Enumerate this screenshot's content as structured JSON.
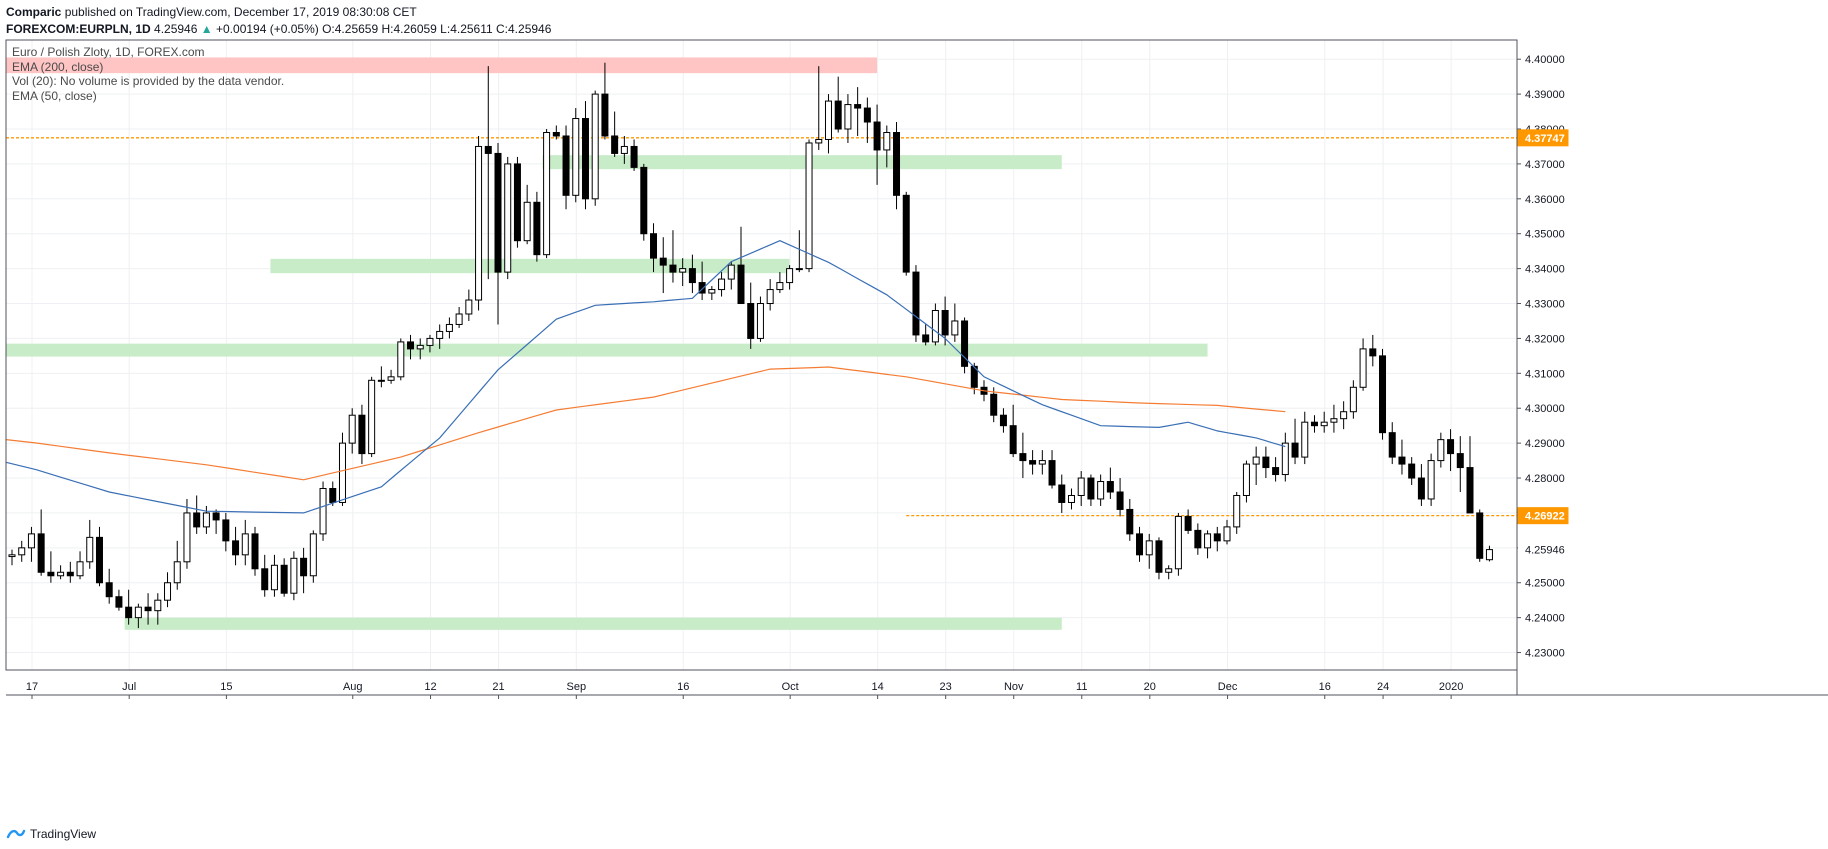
{
  "header": {
    "author": "Comparic",
    "published_text": "published on TradingView.com, December 17, 2019 08:30:08 CET",
    "symbol": "FOREXCOM:EURPLN, 1D",
    "last": "4.25946",
    "change_arrow": "▲",
    "change": "+0.00194 (+0.05%)",
    "ohlc": "O:4.25659 H:4.26059 L:4.25611 C:4.25946"
  },
  "legend": {
    "title": "Euro / Polish Zloty, 1D, FOREX.com",
    "ema200": "EMA (200, close)",
    "vol": "Vol (20): No volume is provided by the data vendor.",
    "ema50": "EMA (50, close)"
  },
  "footer": {
    "brand": "TradingView"
  },
  "colors": {
    "ema200": "#f57c33",
    "ema50": "#3a6fb5",
    "support_zone": "#c8ebc8",
    "resistance_zone": "#ffc4c4",
    "level_line": "#ff9800",
    "candle_up_fill": "#ffffff",
    "candle_down_fill": "#000000"
  },
  "chart_data": {
    "type": "candlestick",
    "ylim": [
      4.225,
      4.4055
    ],
    "y_ticks": [
      "4.40000",
      "4.39000",
      "4.38000",
      "4.37000",
      "4.36000",
      "4.35000",
      "4.34000",
      "4.33000",
      "4.32000",
      "4.31000",
      "4.30000",
      "4.29000",
      "4.28000",
      "4.27000",
      "4.26000",
      "4.25000",
      "4.24000",
      "4.23000"
    ],
    "x_ticks": [
      {
        "label": "17",
        "idx": 0
      },
      {
        "label": "Jul",
        "idx": 10
      },
      {
        "label": "15",
        "idx": 20
      },
      {
        "label": "Aug",
        "idx": 33
      },
      {
        "label": "12",
        "idx": 41
      },
      {
        "label": "21",
        "idx": 48
      },
      {
        "label": "Sep",
        "idx": 56
      },
      {
        "label": "16",
        "idx": 67
      },
      {
        "label": "Oct",
        "idx": 78
      },
      {
        "label": "14",
        "idx": 87
      },
      {
        "label": "23",
        "idx": 94
      },
      {
        "label": "Nov",
        "idx": 101
      },
      {
        "label": "11",
        "idx": 108
      },
      {
        "label": "20",
        "idx": 115
      },
      {
        "label": "Dec",
        "idx": 123
      },
      {
        "label": "16",
        "idx": 133
      },
      {
        "label": "24",
        "idx": 139
      },
      {
        "label": "2020",
        "idx": 146
      }
    ],
    "price_labels": [
      {
        "value": 4.37747,
        "text": "4.37747",
        "style": "level"
      },
      {
        "value": 4.26922,
        "text": "4.26922",
        "style": "level"
      },
      {
        "value": 4.25946,
        "text": "4.25946",
        "style": "last"
      }
    ],
    "levels": [
      {
        "value": 4.37747,
        "from_idx": 0,
        "to_idx": 150
      },
      {
        "value": 4.26922,
        "from_idx": 92,
        "to_idx": 150
      }
    ],
    "zones": [
      {
        "kind": "resistance",
        "from_idx": 0,
        "to_idx": 89,
        "low": 4.396,
        "high": 4.4005
      },
      {
        "kind": "support",
        "from_idx": 55,
        "to_idx": 108,
        "low": 4.3685,
        "high": 4.3725
      },
      {
        "kind": "support",
        "from_idx": 27,
        "to_idx": 80,
        "low": 4.3387,
        "high": 4.3428
      },
      {
        "kind": "support",
        "from_idx": 0,
        "to_idx": 123,
        "low": 4.3148,
        "high": 4.3185
      },
      {
        "kind": "support",
        "from_idx": 12,
        "to_idx": 108,
        "low": 4.2365,
        "high": 4.24
      }
    ],
    "ema200": [
      [
        0,
        4.291
      ],
      [
        10,
        4.2872
      ],
      [
        20,
        4.2838
      ],
      [
        30,
        4.2795
      ],
      [
        40,
        4.286
      ],
      [
        48,
        4.293
      ],
      [
        56,
        4.2995
      ],
      [
        66,
        4.3032
      ],
      [
        72,
        4.3072
      ],
      [
        78,
        4.3112
      ],
      [
        84,
        4.3118
      ],
      [
        92,
        4.309
      ],
      [
        100,
        4.305
      ],
      [
        108,
        4.3025
      ],
      [
        116,
        4.3015
      ],
      [
        124,
        4.3008
      ],
      [
        131,
        4.299
      ]
    ],
    "ema50": [
      [
        0,
        4.2845
      ],
      [
        10,
        4.276
      ],
      [
        20,
        4.2705
      ],
      [
        30,
        4.27
      ],
      [
        38,
        4.2775
      ],
      [
        44,
        4.2915
      ],
      [
        50,
        4.311
      ],
      [
        56,
        4.3255
      ],
      [
        60,
        4.3295
      ],
      [
        66,
        4.3305
      ],
      [
        70,
        4.3315
      ],
      [
        74,
        4.342
      ],
      [
        79,
        4.348
      ],
      [
        84,
        4.3418
      ],
      [
        90,
        4.3325
      ],
      [
        96,
        4.32
      ],
      [
        100,
        4.309
      ],
      [
        106,
        4.301
      ],
      [
        112,
        4.295
      ],
      [
        118,
        4.2945
      ],
      [
        121,
        4.296
      ],
      [
        124,
        4.2935
      ],
      [
        128,
        4.2915
      ],
      [
        131,
        4.289
      ]
    ],
    "candles": [
      [
        4.2575,
        4.2595,
        4.255,
        4.258
      ],
      [
        4.258,
        4.262,
        4.256,
        4.26
      ],
      [
        4.26,
        4.266,
        4.256,
        4.264
      ],
      [
        4.264,
        4.271,
        4.252,
        4.253
      ],
      [
        4.253,
        4.259,
        4.25,
        4.252
      ],
      [
        4.252,
        4.255,
        4.251,
        4.253
      ],
      [
        4.253,
        4.256,
        4.25,
        4.252
      ],
      [
        4.252,
        4.259,
        4.251,
        4.256
      ],
      [
        4.256,
        4.268,
        4.254,
        4.263
      ],
      [
        4.263,
        4.266,
        4.249,
        4.25
      ],
      [
        4.25,
        4.254,
        4.244,
        4.246
      ],
      [
        4.246,
        4.248,
        4.242,
        4.243
      ],
      [
        4.243,
        4.248,
        4.238,
        4.24
      ],
      [
        4.24,
        4.244,
        4.237,
        4.243
      ],
      [
        4.243,
        4.247,
        4.238,
        4.242
      ],
      [
        4.242,
        4.247,
        4.238,
        4.245
      ],
      [
        4.245,
        4.253,
        4.243,
        4.25
      ],
      [
        4.25,
        4.262,
        4.248,
        4.256
      ],
      [
        4.256,
        4.274,
        4.254,
        4.27
      ],
      [
        4.27,
        4.275,
        4.264,
        4.266
      ],
      [
        4.266,
        4.272,
        4.264,
        4.27
      ],
      [
        4.27,
        4.271,
        4.264,
        4.268
      ],
      [
        4.268,
        4.27,
        4.259,
        4.262
      ],
      [
        4.262,
        4.266,
        4.255,
        4.258
      ],
      [
        4.258,
        4.268,
        4.255,
        4.264
      ],
      [
        4.264,
        4.266,
        4.252,
        4.254
      ],
      [
        4.254,
        4.258,
        4.246,
        4.248
      ],
      [
        4.248,
        4.258,
        4.246,
        4.255
      ],
      [
        4.255,
        4.257,
        4.246,
        4.247
      ],
      [
        4.247,
        4.259,
        4.245,
        4.257
      ],
      [
        4.257,
        4.26,
        4.247,
        4.252
      ],
      [
        4.252,
        4.265,
        4.25,
        4.264
      ],
      [
        4.264,
        4.279,
        4.262,
        4.277
      ],
      [
        4.277,
        4.279,
        4.272,
        4.273
      ],
      [
        4.273,
        4.293,
        4.272,
        4.29
      ],
      [
        4.29,
        4.3,
        4.287,
        4.298
      ],
      [
        4.298,
        4.301,
        4.284,
        4.287
      ],
      [
        4.287,
        4.309,
        4.286,
        4.308
      ],
      [
        4.308,
        4.312,
        4.306,
        4.308
      ],
      [
        4.308,
        4.311,
        4.307,
        4.309
      ],
      [
        4.309,
        4.32,
        4.308,
        4.319
      ],
      [
        4.319,
        4.321,
        4.314,
        4.317
      ],
      [
        4.317,
        4.32,
        4.314,
        4.318
      ],
      [
        4.318,
        4.321,
        4.316,
        4.32
      ],
      [
        4.32,
        4.324,
        4.317,
        4.322
      ],
      [
        4.322,
        4.326,
        4.32,
        4.324
      ],
      [
        4.324,
        4.329,
        4.323,
        4.327
      ],
      [
        4.327,
        4.334,
        4.325,
        4.331
      ],
      [
        4.331,
        4.378,
        4.328,
        4.375
      ],
      [
        4.375,
        4.398,
        4.337,
        4.373
      ],
      [
        4.373,
        4.376,
        4.324,
        4.339
      ],
      [
        4.339,
        4.372,
        4.337,
        4.37
      ],
      [
        4.37,
        4.372,
        4.346,
        4.348
      ],
      [
        4.348,
        4.364,
        4.347,
        4.359
      ],
      [
        4.359,
        4.362,
        4.342,
        4.344
      ],
      [
        4.344,
        4.38,
        4.343,
        4.379
      ],
      [
        4.379,
        4.381,
        4.377,
        4.378
      ],
      [
        4.378,
        4.381,
        4.357,
        4.361
      ],
      [
        4.361,
        4.386,
        4.359,
        4.383
      ],
      [
        4.383,
        4.388,
        4.357,
        4.36
      ],
      [
        4.36,
        4.391,
        4.358,
        4.39
      ],
      [
        4.39,
        4.399,
        4.377,
        4.378
      ],
      [
        4.378,
        4.385,
        4.372,
        4.373
      ],
      [
        4.373,
        4.378,
        4.37,
        4.375
      ],
      [
        4.375,
        4.377,
        4.368,
        4.369
      ],
      [
        4.369,
        4.37,
        4.348,
        4.35
      ],
      [
        4.35,
        4.353,
        4.339,
        4.343
      ],
      [
        4.343,
        4.349,
        4.333,
        4.341
      ],
      [
        4.341,
        4.351,
        4.336,
        4.339
      ],
      [
        4.339,
        4.343,
        4.335,
        4.34
      ],
      [
        4.34,
        4.344,
        4.333,
        4.336
      ],
      [
        4.336,
        4.342,
        4.331,
        4.333
      ],
      [
        4.333,
        4.335,
        4.331,
        4.334
      ],
      [
        4.334,
        4.339,
        4.332,
        4.337
      ],
      [
        4.337,
        4.342,
        4.334,
        4.341
      ],
      [
        4.341,
        4.352,
        4.33,
        4.33
      ],
      [
        4.33,
        4.336,
        4.317,
        4.32
      ],
      [
        4.32,
        4.332,
        4.319,
        4.33
      ],
      [
        4.33,
        4.337,
        4.328,
        4.334
      ],
      [
        4.334,
        4.339,
        4.333,
        4.336
      ],
      [
        4.336,
        4.341,
        4.334,
        4.34
      ],
      [
        4.34,
        4.351,
        4.339,
        4.34
      ],
      [
        4.34,
        4.377,
        4.339,
        4.376
      ],
      [
        4.376,
        4.398,
        4.374,
        4.377
      ],
      [
        4.377,
        4.39,
        4.373,
        4.388
      ],
      [
        4.388,
        4.395,
        4.379,
        4.38
      ],
      [
        4.38,
        4.39,
        4.376,
        4.387
      ],
      [
        4.387,
        4.392,
        4.378,
        4.386
      ],
      [
        4.386,
        4.389,
        4.376,
        4.382
      ],
      [
        4.382,
        4.387,
        4.364,
        4.374
      ],
      [
        4.374,
        4.381,
        4.369,
        4.379
      ],
      [
        4.379,
        4.382,
        4.357,
        4.361
      ],
      [
        4.361,
        4.362,
        4.338,
        4.339
      ],
      [
        4.339,
        4.341,
        4.319,
        4.321
      ],
      [
        4.321,
        4.324,
        4.318,
        4.319
      ],
      [
        4.319,
        4.33,
        4.318,
        4.328
      ],
      [
        4.328,
        4.332,
        4.318,
        4.321
      ],
      [
        4.321,
        4.33,
        4.319,
        4.325
      ],
      [
        4.325,
        4.326,
        4.31,
        4.312
      ],
      [
        4.312,
        4.313,
        4.304,
        4.306
      ],
      [
        4.306,
        4.308,
        4.302,
        4.304
      ],
      [
        4.304,
        4.306,
        4.296,
        4.298
      ],
      [
        4.298,
        4.3,
        4.293,
        4.295
      ],
      [
        4.295,
        4.301,
        4.286,
        4.287
      ],
      [
        4.287,
        4.293,
        4.28,
        4.285
      ],
      [
        4.285,
        4.288,
        4.281,
        4.284
      ],
      [
        4.284,
        4.288,
        4.281,
        4.285
      ],
      [
        4.285,
        4.288,
        4.277,
        4.278
      ],
      [
        4.278,
        4.281,
        4.27,
        4.273
      ],
      [
        4.273,
        4.277,
        4.271,
        4.275
      ],
      [
        4.275,
        4.282,
        4.272,
        4.28
      ],
      [
        4.28,
        4.281,
        4.272,
        4.274
      ],
      [
        4.274,
        4.281,
        4.272,
        4.279
      ],
      [
        4.279,
        4.283,
        4.274,
        4.276
      ],
      [
        4.276,
        4.28,
        4.269,
        4.271
      ],
      [
        4.271,
        4.274,
        4.262,
        4.264
      ],
      [
        4.264,
        4.266,
        4.256,
        4.258
      ],
      [
        4.258,
        4.264,
        4.254,
        4.262
      ],
      [
        4.262,
        4.263,
        4.251,
        4.253
      ],
      [
        4.253,
        4.255,
        4.251,
        4.254
      ],
      [
        4.254,
        4.27,
        4.252,
        4.269
      ],
      [
        4.269,
        4.271,
        4.264,
        4.265
      ],
      [
        4.265,
        4.267,
        4.258,
        4.26
      ],
      [
        4.26,
        4.265,
        4.257,
        4.264
      ],
      [
        4.264,
        4.266,
        4.259,
        4.262
      ],
      [
        4.262,
        4.268,
        4.261,
        4.266
      ],
      [
        4.266,
        4.276,
        4.264,
        4.275
      ],
      [
        4.275,
        4.285,
        4.273,
        4.284
      ],
      [
        4.284,
        4.289,
        4.278,
        4.286
      ],
      [
        4.286,
        4.289,
        4.28,
        4.283
      ],
      [
        4.283,
        4.286,
        4.279,
        4.281
      ],
      [
        4.281,
        4.293,
        4.279,
        4.29
      ],
      [
        4.29,
        4.297,
        4.284,
        4.286
      ],
      [
        4.286,
        4.299,
        4.284,
        4.296
      ],
      [
        4.296,
        4.298,
        4.293,
        4.295
      ],
      [
        4.295,
        4.299,
        4.293,
        4.296
      ],
      [
        4.296,
        4.301,
        4.293,
        4.297
      ],
      [
        4.297,
        4.302,
        4.294,
        4.299
      ],
      [
        4.299,
        4.308,
        4.297,
        4.306
      ],
      [
        4.306,
        4.32,
        4.305,
        4.317
      ],
      [
        4.317,
        4.321,
        4.312,
        4.315
      ],
      [
        4.315,
        4.317,
        4.291,
        4.293
      ],
      [
        4.293,
        4.296,
        4.284,
        4.286
      ],
      [
        4.286,
        4.291,
        4.281,
        4.284
      ],
      [
        4.284,
        4.286,
        4.278,
        4.28
      ],
      [
        4.28,
        4.284,
        4.272,
        4.274
      ],
      [
        4.274,
        4.287,
        4.272,
        4.285
      ],
      [
        4.285,
        4.293,
        4.283,
        4.291
      ],
      [
        4.291,
        4.294,
        4.282,
        4.287
      ],
      [
        4.287,
        4.292,
        4.276,
        4.283
      ],
      [
        4.283,
        4.292,
        4.27,
        4.27
      ],
      [
        4.27,
        4.271,
        4.256,
        4.257
      ],
      [
        4.2566,
        4.2606,
        4.2561,
        4.2595
      ]
    ]
  }
}
